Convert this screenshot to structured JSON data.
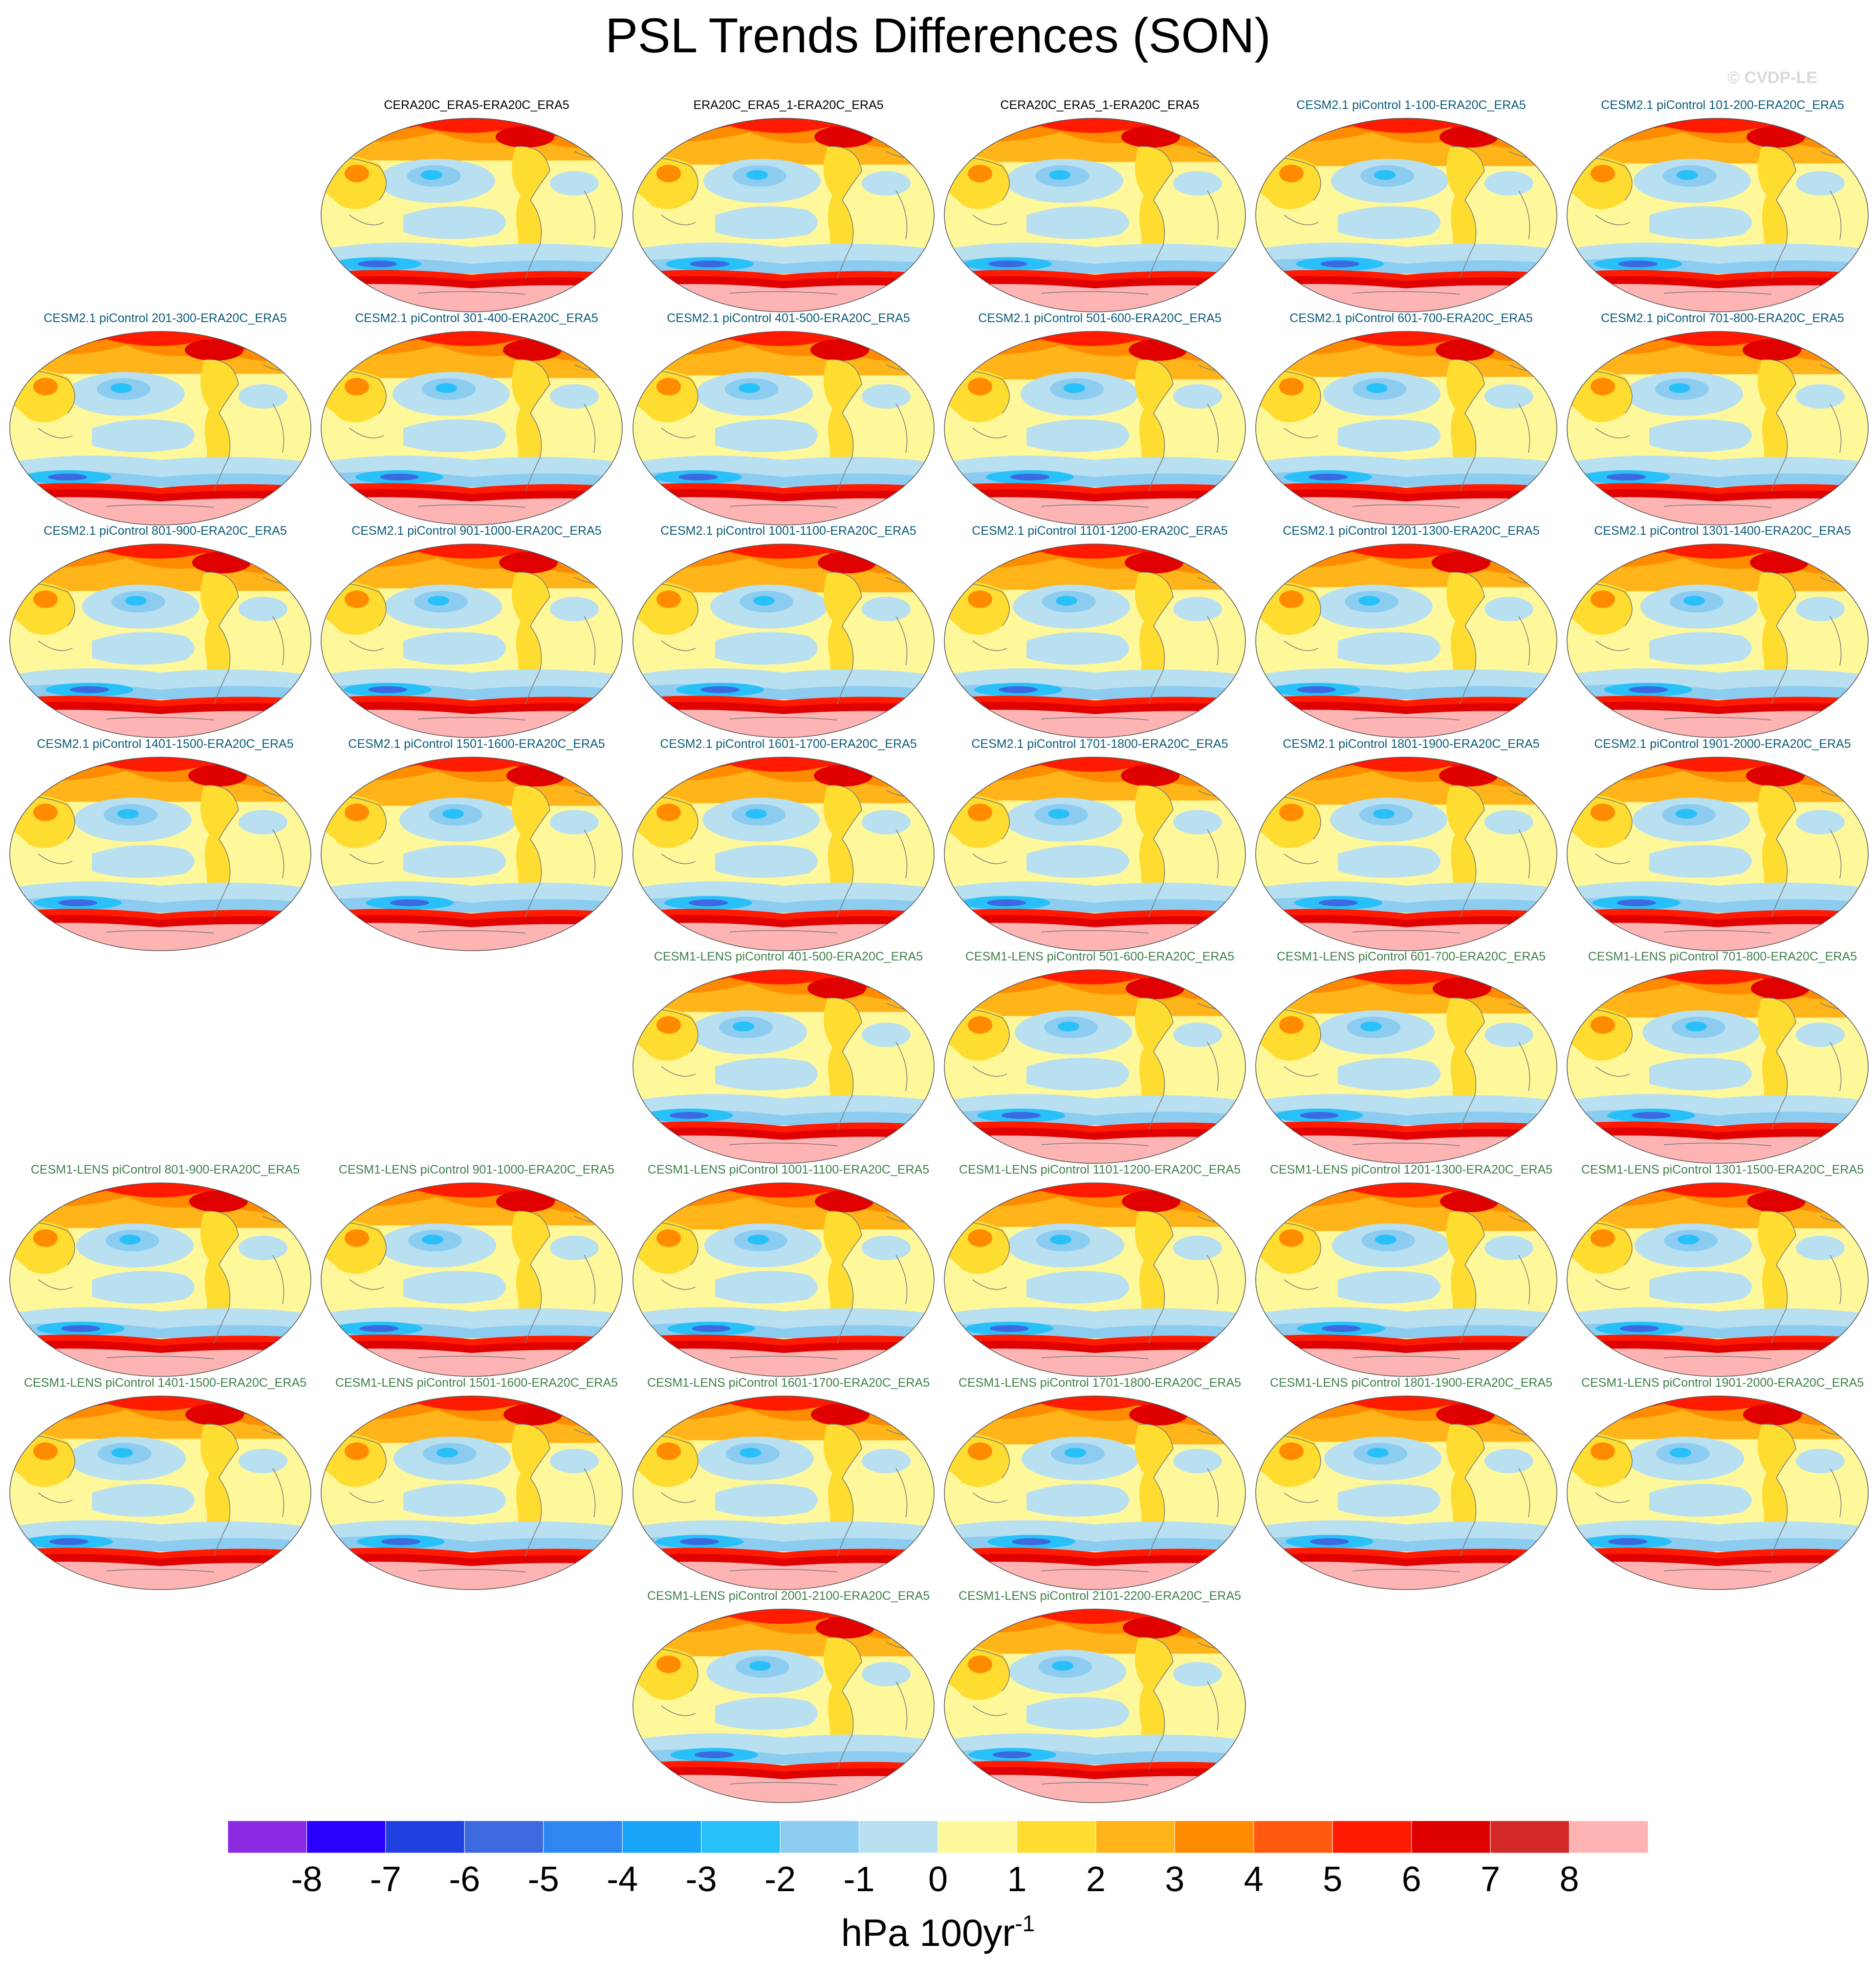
{
  "title": "PSL Trends Differences (SON)",
  "watermark": "© CVDP-LE",
  "colors": {
    "reanalysis_title": "#000000",
    "cesm2_title": "#0b5a78",
    "cesm1_title": "#3f7f4a"
  },
  "panels": [
    {
      "title": "CERA20C_ERA5-ERA20C_ERA5",
      "group": "reanalysis",
      "row": 0,
      "col": 1
    },
    {
      "title": "ERA20C_ERA5_1-ERA20C_ERA5",
      "group": "reanalysis",
      "row": 0,
      "col": 2
    },
    {
      "title": "CERA20C_ERA5_1-ERA20C_ERA5",
      "group": "reanalysis",
      "row": 0,
      "col": 3
    },
    {
      "title": "CESM2.1 piControl 1-100-ERA20C_ERA5",
      "group": "cesm2",
      "row": 0,
      "col": 4
    },
    {
      "title": "CESM2.1 piControl 101-200-ERA20C_ERA5",
      "group": "cesm2",
      "row": 0,
      "col": 5
    },
    {
      "title": "CESM2.1 piControl 201-300-ERA20C_ERA5",
      "group": "cesm2",
      "row": 1,
      "col": 0
    },
    {
      "title": "CESM2.1 piControl 301-400-ERA20C_ERA5",
      "group": "cesm2",
      "row": 1,
      "col": 1
    },
    {
      "title": "CESM2.1 piControl 401-500-ERA20C_ERA5",
      "group": "cesm2",
      "row": 1,
      "col": 2
    },
    {
      "title": "CESM2.1 piControl 501-600-ERA20C_ERA5",
      "group": "cesm2",
      "row": 1,
      "col": 3
    },
    {
      "title": "CESM2.1 piControl 601-700-ERA20C_ERA5",
      "group": "cesm2",
      "row": 1,
      "col": 4
    },
    {
      "title": "CESM2.1 piControl 701-800-ERA20C_ERA5",
      "group": "cesm2",
      "row": 1,
      "col": 5
    },
    {
      "title": "CESM2.1 piControl 801-900-ERA20C_ERA5",
      "group": "cesm2",
      "row": 2,
      "col": 0
    },
    {
      "title": "CESM2.1 piControl 901-1000-ERA20C_ERA5",
      "group": "cesm2",
      "row": 2,
      "col": 1
    },
    {
      "title": "CESM2.1 piControl 1001-1100-ERA20C_ERA5",
      "group": "cesm2",
      "row": 2,
      "col": 2
    },
    {
      "title": "CESM2.1 piControl 1101-1200-ERA20C_ERA5",
      "group": "cesm2",
      "row": 2,
      "col": 3
    },
    {
      "title": "CESM2.1 piControl 1201-1300-ERA20C_ERA5",
      "group": "cesm2",
      "row": 2,
      "col": 4
    },
    {
      "title": "CESM2.1 piControl 1301-1400-ERA20C_ERA5",
      "group": "cesm2",
      "row": 2,
      "col": 5
    },
    {
      "title": "CESM2.1 piControl 1401-1500-ERA20C_ERA5",
      "group": "cesm2",
      "row": 3,
      "col": 0
    },
    {
      "title": "CESM2.1 piControl 1501-1600-ERA20C_ERA5",
      "group": "cesm2",
      "row": 3,
      "col": 1
    },
    {
      "title": "CESM2.1 piControl 1601-1700-ERA20C_ERA5",
      "group": "cesm2",
      "row": 3,
      "col": 2
    },
    {
      "title": "CESM2.1 piControl 1701-1800-ERA20C_ERA5",
      "group": "cesm2",
      "row": 3,
      "col": 3
    },
    {
      "title": "CESM2.1 piControl 1801-1900-ERA20C_ERA5",
      "group": "cesm2",
      "row": 3,
      "col": 4
    },
    {
      "title": "CESM2.1 piControl 1901-2000-ERA20C_ERA5",
      "group": "cesm2",
      "row": 3,
      "col": 5
    },
    {
      "title": "CESM1-LENS piControl 401-500-ERA20C_ERA5",
      "group": "cesm1",
      "row": 4,
      "col": 2
    },
    {
      "title": "CESM1-LENS piControl 501-600-ERA20C_ERA5",
      "group": "cesm1",
      "row": 4,
      "col": 3
    },
    {
      "title": "CESM1-LENS piControl 601-700-ERA20C_ERA5",
      "group": "cesm1",
      "row": 4,
      "col": 4
    },
    {
      "title": "CESM1-LENS piControl 701-800-ERA20C_ERA5",
      "group": "cesm1",
      "row": 4,
      "col": 5
    },
    {
      "title": "CESM1-LENS piControl 801-900-ERA20C_ERA5",
      "group": "cesm1",
      "row": 5,
      "col": 0
    },
    {
      "title": "CESM1-LENS piControl 901-1000-ERA20C_ERA5",
      "group": "cesm1",
      "row": 5,
      "col": 1
    },
    {
      "title": "CESM1-LENS piControl 1001-1100-ERA20C_ERA5",
      "group": "cesm1",
      "row": 5,
      "col": 2
    },
    {
      "title": "CESM1-LENS piControl 1101-1200-ERA20C_ERA5",
      "group": "cesm1",
      "row": 5,
      "col": 3
    },
    {
      "title": "CESM1-LENS piControl 1201-1300-ERA20C_ERA5",
      "group": "cesm1",
      "row": 5,
      "col": 4
    },
    {
      "title": "CESM1-LENS piControl 1301-1500-ERA20C_ERA5",
      "group": "cesm1",
      "row": 5,
      "col": 5
    },
    {
      "title": "CESM1-LENS piControl 1401-1500-ERA20C_ERA5",
      "group": "cesm1",
      "row": 6,
      "col": 0
    },
    {
      "title": "CESM1-LENS piControl 1501-1600-ERA20C_ERA5",
      "group": "cesm1",
      "row": 6,
      "col": 1
    },
    {
      "title": "CESM1-LENS piControl 1601-1700-ERA20C_ERA5",
      "group": "cesm1",
      "row": 6,
      "col": 2
    },
    {
      "title": "CESM1-LENS piControl 1701-1800-ERA20C_ERA5",
      "group": "cesm1",
      "row": 6,
      "col": 3
    },
    {
      "title": "CESM1-LENS piControl 1801-1900-ERA20C_ERA5",
      "group": "cesm1",
      "row": 6,
      "col": 4
    },
    {
      "title": "CESM1-LENS piControl 1901-2000-ERA20C_ERA5",
      "group": "cesm1",
      "row": 6,
      "col": 5
    },
    {
      "title": "CESM1-LENS piControl 2001-2100-ERA20C_ERA5",
      "group": "cesm1",
      "row": 7,
      "col": 2
    },
    {
      "title": "CESM1-LENS piControl 2101-2200-ERA20C_ERA5",
      "group": "cesm1",
      "row": 7,
      "col": 3
    }
  ],
  "colorbar": {
    "colors": [
      "#8a2be2",
      "#2a00ff",
      "#2040e0",
      "#3c68e0",
      "#2e86f0",
      "#18a4f8",
      "#28c0f8",
      "#8cccf0",
      "#b8e0f0",
      "#fff89a",
      "#ffdc30",
      "#ffb41a",
      "#ff8c00",
      "#ff5a10",
      "#ff1a00",
      "#e00000",
      "#d42828",
      "#ffb4b4"
    ],
    "labels": [
      "-8",
      "-7",
      "-6",
      "-5",
      "-4",
      "-3",
      "-2",
      "-1",
      "0",
      "1",
      "2",
      "3",
      "4",
      "5",
      "6",
      "7",
      "8"
    ],
    "units": "hPa 100yr",
    "units_exponent": "-1"
  },
  "map_colors": {
    "ocean_neg": "#b8e0f0",
    "ocean_neg2": "#8cccf0",
    "ocean_neg3": "#28c0f8",
    "ocean_neg4": "#3c68e0",
    "pos1": "#fff89a",
    "pos2": "#ffdc30",
    "pos3": "#ffb41a",
    "pos4": "#ff8c00",
    "pos5": "#ff1a00",
    "pos6": "#e00000",
    "antarctic": "#ffb4b4",
    "coast": "#7a7a7a"
  }
}
